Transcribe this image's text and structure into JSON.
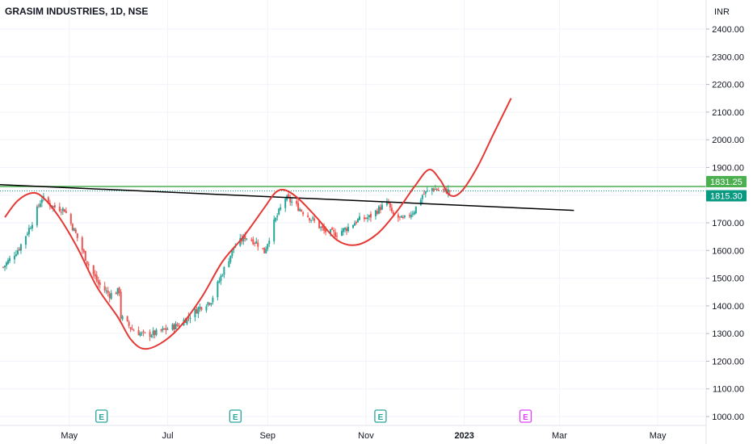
{
  "chart_data": {
    "type": "candlestick",
    "title": "GRASIM INDUSTRIES, 1D, NSE",
    "currency": "INR",
    "y_ticks": [
      "2400.00",
      "2300.00",
      "2200.00",
      "2100.00",
      "2000.00",
      "1900.00",
      "1800.00",
      "1700.00",
      "1600.00",
      "1500.00",
      "1400.00",
      "1300.00",
      "1200.00",
      "1100.00",
      "1000.00"
    ],
    "y_tick_values": [
      2400,
      2300,
      2200,
      2100,
      2000,
      1900,
      1800,
      1700,
      1600,
      1500,
      1400,
      1300,
      1200,
      1100,
      1000
    ],
    "ylim": [
      968,
      2505
    ],
    "x_labels": [
      "May",
      "Jul",
      "Sep",
      "Nov",
      "2023",
      "Mar",
      "May"
    ],
    "x_label_dates": [
      "2022-05-01",
      "2022-07-01",
      "2022-09-01",
      "2022-11-01",
      "2023-01-01",
      "2023-03-01",
      "2023-05-01"
    ],
    "xlim": [
      "2022-03-19",
      "2023-05-31"
    ],
    "grid": true,
    "colors": {
      "up": "#26a69a",
      "down": "#ef5350",
      "pattern": "#e53935",
      "trendline": "#000000",
      "level": "#4caf50",
      "last_price": "#089981",
      "event_teal": "#26a69a",
      "event_magenta": "#e040fb"
    },
    "price_tags": [
      {
        "label": "1831.25",
        "value": 1831.25,
        "color": "#4caf50"
      },
      {
        "label": "1815.30",
        "value": 1815.3,
        "color": "#089981"
      }
    ],
    "horizontal_level": 1831.25,
    "trendline": [
      {
        "date": "2022-03-19",
        "value": 1838
      },
      {
        "date": "2023-03-10",
        "value": 1745
      }
    ],
    "pattern_curve": [
      {
        "date": "2022-03-22",
        "value": 1720
      },
      {
        "date": "2022-03-30",
        "value": 1780
      },
      {
        "date": "2022-04-08",
        "value": 1808
      },
      {
        "date": "2022-04-15",
        "value": 1790
      },
      {
        "date": "2022-04-25",
        "value": 1718
      },
      {
        "date": "2022-05-06",
        "value": 1610
      },
      {
        "date": "2022-05-18",
        "value": 1470
      },
      {
        "date": "2022-05-31",
        "value": 1360
      },
      {
        "date": "2022-06-08",
        "value": 1280
      },
      {
        "date": "2022-06-16",
        "value": 1245
      },
      {
        "date": "2022-06-26",
        "value": 1262
      },
      {
        "date": "2022-07-08",
        "value": 1320
      },
      {
        "date": "2022-07-22",
        "value": 1430
      },
      {
        "date": "2022-08-04",
        "value": 1560
      },
      {
        "date": "2022-08-17",
        "value": 1650
      },
      {
        "date": "2022-08-30",
        "value": 1755
      },
      {
        "date": "2022-09-06",
        "value": 1810
      },
      {
        "date": "2022-09-12",
        "value": 1818
      },
      {
        "date": "2022-09-20",
        "value": 1788
      },
      {
        "date": "2022-10-01",
        "value": 1722
      },
      {
        "date": "2022-10-14",
        "value": 1638
      },
      {
        "date": "2022-10-26",
        "value": 1620
      },
      {
        "date": "2022-11-08",
        "value": 1660
      },
      {
        "date": "2022-11-20",
        "value": 1740
      },
      {
        "date": "2022-12-01",
        "value": 1830
      },
      {
        "date": "2022-12-10",
        "value": 1892
      },
      {
        "date": "2022-12-17",
        "value": 1855
      },
      {
        "date": "2022-12-23",
        "value": 1800
      },
      {
        "date": "2022-12-30",
        "value": 1812
      },
      {
        "date": "2023-01-09",
        "value": 1900
      },
      {
        "date": "2023-01-19",
        "value": 2020
      },
      {
        "date": "2023-01-30",
        "value": 2150
      }
    ],
    "series": [
      {
        "kind": "close_path",
        "start_date": "2022-03-21",
        "end_date": "2022-12-23",
        "points": [
          {
            "date": "2022-03-21",
            "value": 1540
          },
          {
            "date": "2022-03-31",
            "value": 1610
          },
          {
            "date": "2022-04-07",
            "value": 1690
          },
          {
            "date": "2022-04-14",
            "value": 1790
          },
          {
            "date": "2022-04-21",
            "value": 1758
          },
          {
            "date": "2022-04-28",
            "value": 1748
          },
          {
            "date": "2022-05-05",
            "value": 1660
          },
          {
            "date": "2022-05-12",
            "value": 1560
          },
          {
            "date": "2022-05-19",
            "value": 1480
          },
          {
            "date": "2022-05-26",
            "value": 1440
          },
          {
            "date": "2022-06-01",
            "value": 1455
          },
          {
            "date": "2022-06-02",
            "value": 1360
          },
          {
            "date": "2022-06-09",
            "value": 1315
          },
          {
            "date": "2022-06-16",
            "value": 1295
          },
          {
            "date": "2022-06-23",
            "value": 1300
          },
          {
            "date": "2022-06-30",
            "value": 1315
          },
          {
            "date": "2022-07-07",
            "value": 1330
          },
          {
            "date": "2022-07-14",
            "value": 1360
          },
          {
            "date": "2022-07-21",
            "value": 1395
          },
          {
            "date": "2022-07-28",
            "value": 1420
          },
          {
            "date": "2022-08-04",
            "value": 1520
          },
          {
            "date": "2022-08-11",
            "value": 1610
          },
          {
            "date": "2022-08-18",
            "value": 1650
          },
          {
            "date": "2022-08-25",
            "value": 1630
          },
          {
            "date": "2022-08-30",
            "value": 1595
          },
          {
            "date": "2022-09-05",
            "value": 1700
          },
          {
            "date": "2022-09-12",
            "value": 1790
          },
          {
            "date": "2022-09-16",
            "value": 1775
          },
          {
            "date": "2022-09-22",
            "value": 1745
          },
          {
            "date": "2022-09-29",
            "value": 1710
          },
          {
            "date": "2022-10-06",
            "value": 1670
          },
          {
            "date": "2022-10-13",
            "value": 1660
          },
          {
            "date": "2022-10-20",
            "value": 1680
          },
          {
            "date": "2022-10-27",
            "value": 1710
          },
          {
            "date": "2022-11-03",
            "value": 1720
          },
          {
            "date": "2022-11-10",
            "value": 1755
          },
          {
            "date": "2022-11-15",
            "value": 1770
          },
          {
            "date": "2022-11-17",
            "value": 1730
          },
          {
            "date": "2022-11-24",
            "value": 1710
          },
          {
            "date": "2022-12-01",
            "value": 1745
          },
          {
            "date": "2022-12-06",
            "value": 1800
          },
          {
            "date": "2022-12-12",
            "value": 1825
          },
          {
            "date": "2022-12-18",
            "value": 1815
          },
          {
            "date": "2022-12-23",
            "value": 1815
          }
        ]
      }
    ],
    "events": [
      {
        "label": "E",
        "date": "2022-05-21",
        "color": "#26a69a"
      },
      {
        "label": "E",
        "date": "2022-08-12",
        "color": "#26a69a"
      },
      {
        "label": "E",
        "date": "2022-11-10",
        "color": "#26a69a"
      },
      {
        "label": "E",
        "date": "2023-02-08",
        "color": "#e040fb"
      }
    ]
  }
}
